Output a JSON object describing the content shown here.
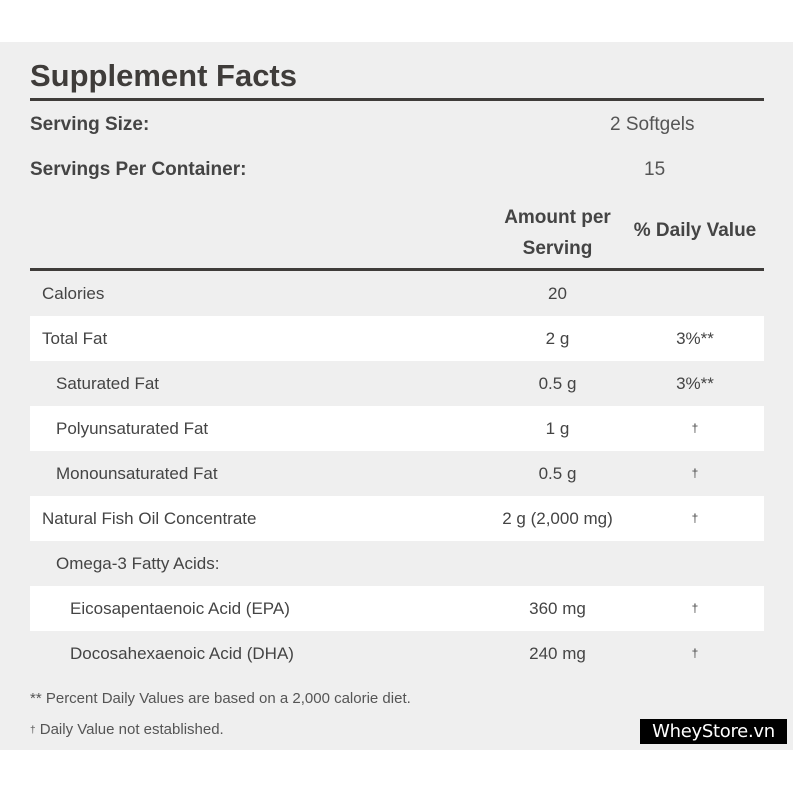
{
  "label": {
    "title": "Supplement Facts",
    "serving_size_label": "Serving Size:",
    "serving_size_value": "2 Softgels",
    "servings_label": "Servings Per Container:",
    "servings_value": "15",
    "col_amount_line1": "Amount per",
    "col_amount_line2": "Serving",
    "col_dv": "% Daily Value"
  },
  "rows": [
    {
      "name": "Calories",
      "amount": "20",
      "dv": "",
      "indent": 0
    },
    {
      "name": "Total Fat",
      "amount": "2 g",
      "dv": "3%**",
      "indent": 0
    },
    {
      "name": "Saturated Fat",
      "amount": "0.5 g",
      "dv": "3%**",
      "indent": 1
    },
    {
      "name": "Polyunsaturated Fat",
      "amount": "1 g",
      "dv": "†",
      "indent": 1
    },
    {
      "name": "Monounsaturated Fat",
      "amount": "0.5 g",
      "dv": "†",
      "indent": 1
    },
    {
      "name": "Natural Fish Oil Concentrate",
      "amount": "2 g (2,000 mg)",
      "dv": "†",
      "indent": 0
    },
    {
      "name": "Omega-3 Fatty Acids:",
      "amount": "",
      "dv": "",
      "indent": 1
    },
    {
      "name": "Eicosapentaenoic Acid (EPA)",
      "amount": "360 mg",
      "dv": "†",
      "indent": 2
    },
    {
      "name": "Docosahexaenoic Acid (DHA)",
      "amount": "240 mg",
      "dv": "†",
      "indent": 2
    }
  ],
  "footnotes": {
    "percent_note": "** Percent Daily Values are based on a 2,000 calorie diet.",
    "dagger_symbol": "†",
    "dagger_note": " Daily Value not established."
  },
  "watermark": "WheyStore.vn"
}
